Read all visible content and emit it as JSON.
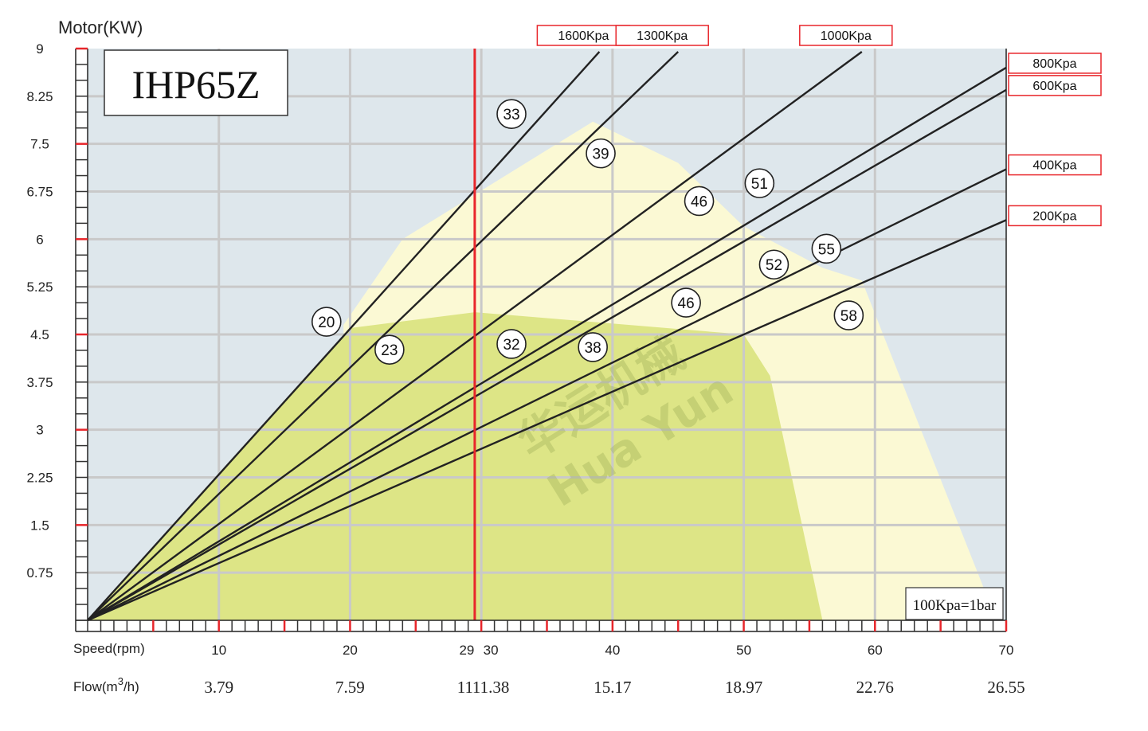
{
  "chart_data": {
    "type": "line",
    "model_label": "IHP65Z",
    "ylabel": "Motor(KW)",
    "xlabel": "Speed(rpm)",
    "flow_label": "Flow(m",
    "flow_label_sup": "3",
    "flow_label_end": "/h)",
    "xlim": [
      0,
      70
    ],
    "ylim": [
      0,
      9
    ],
    "grid": true,
    "y_ticks": [
      "0.75",
      "1.5",
      "2.25",
      "3",
      "3.75",
      "4.5",
      "5.25",
      "6",
      "6.75",
      "7.5",
      "8.25",
      "9"
    ],
    "y_tick_values": [
      0.75,
      1.5,
      2.25,
      3,
      3.75,
      4.5,
      5.25,
      6,
      6.75,
      7.5,
      8.25,
      9
    ],
    "x_ticks": [
      {
        "value": 10,
        "label": "10",
        "flow": "3.79"
      },
      {
        "value": 20,
        "label": "20",
        "flow": "7.59"
      },
      {
        "value": 30,
        "label": "30",
        "flow": "11.38"
      },
      {
        "value": 40,
        "label": "40",
        "flow": "15.17"
      },
      {
        "value": 50,
        "label": "50",
        "flow": "18.97"
      },
      {
        "value": 60,
        "label": "60",
        "flow": "22.76"
      },
      {
        "value": 70,
        "label": "70",
        "flow": "26.55"
      }
    ],
    "marker_line": {
      "value": 29.5,
      "label": "29",
      "flow": "11",
      "color": "#e8262b"
    },
    "series": [
      {
        "name": "1600Kpa",
        "x": [
          0,
          39
        ],
        "y": [
          0,
          8.95
        ]
      },
      {
        "name": "1300Kpa",
        "x": [
          0,
          45
        ],
        "y": [
          0,
          8.95
        ]
      },
      {
        "name": "1000Kpa",
        "x": [
          0,
          59
        ],
        "y": [
          0,
          8.95
        ]
      },
      {
        "name": "800Kpa",
        "x": [
          0,
          70
        ],
        "y": [
          0,
          8.7
        ]
      },
      {
        "name": "600Kpa",
        "x": [
          0,
          70
        ],
        "y": [
          0,
          8.35
        ]
      },
      {
        "name": "400Kpa",
        "x": [
          0,
          70
        ],
        "y": [
          0,
          7.1
        ]
      },
      {
        "name": "200Kpa",
        "x": [
          0,
          70
        ],
        "y": [
          0,
          6.3
        ]
      }
    ],
    "zones": [
      {
        "name": "outer",
        "color": "#fbf9d4",
        "x": [
          19.5,
          24,
          38.5,
          45,
          50,
          56,
          59,
          61,
          68.5
        ],
        "y": [
          4.65,
          6.0,
          7.85,
          7.2,
          6.2,
          5.55,
          5.35,
          4.3,
          0.4
        ]
      },
      {
        "name": "inner",
        "color": "#dde586",
        "x": [
          0,
          20,
          29.5,
          50,
          52,
          56
        ],
        "y": [
          0,
          4.6,
          4.85,
          4.5,
          3.85,
          0
        ]
      }
    ],
    "annotations": [
      {
        "text": "33",
        "x": 32.3,
        "y": 7.97
      },
      {
        "text": "39",
        "x": 39.1,
        "y": 7.35
      },
      {
        "text": "46",
        "x": 46.6,
        "y": 6.6
      },
      {
        "text": "51",
        "x": 51.2,
        "y": 6.88
      },
      {
        "text": "52",
        "x": 52.3,
        "y": 5.6
      },
      {
        "text": "55",
        "x": 56.3,
        "y": 5.85
      },
      {
        "text": "20",
        "x": 18.2,
        "y": 4.7
      },
      {
        "text": "23",
        "x": 23.0,
        "y": 4.26
      },
      {
        "text": "32",
        "x": 32.3,
        "y": 4.35
      },
      {
        "text": "38",
        "x": 38.5,
        "y": 4.3
      },
      {
        "text": "46",
        "x": 45.6,
        "y": 5.0
      },
      {
        "text": "58",
        "x": 58.0,
        "y": 4.8
      }
    ],
    "colors": {
      "plot_bg": "#dee7ec",
      "grid": "#c9c9c9",
      "line": "#222222",
      "label_border": "#e8262b",
      "tick": "#e8262b"
    },
    "note": "100Kpa=1bar",
    "watermark": [
      "华运机械",
      "Hua Yun"
    ]
  }
}
